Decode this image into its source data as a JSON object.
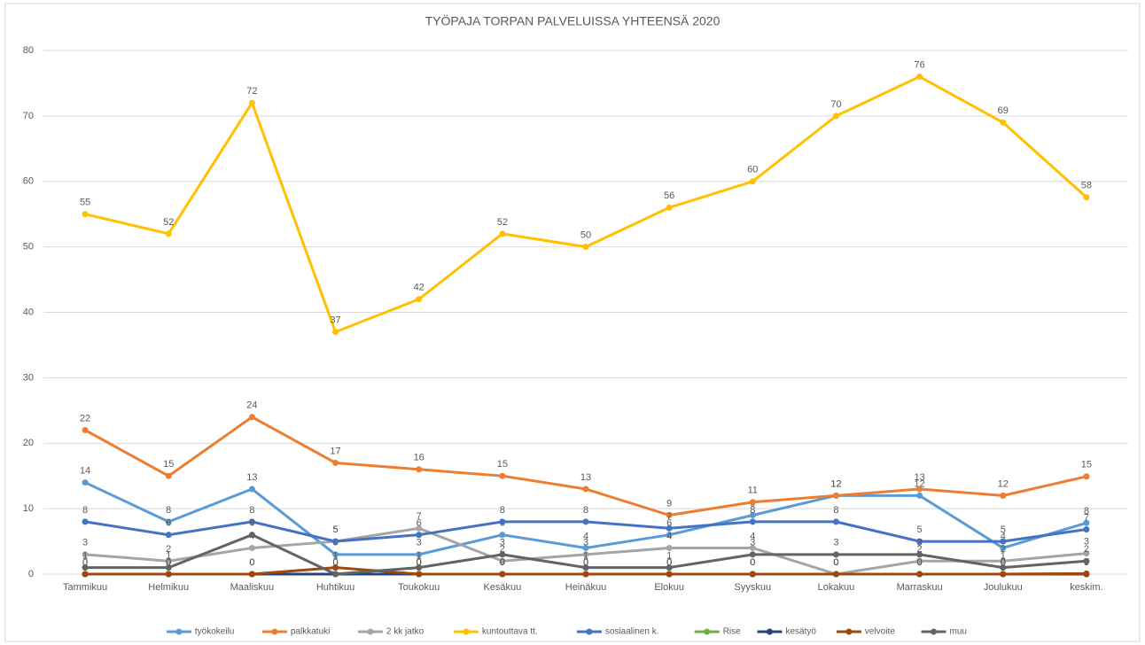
{
  "chart_data": {
    "type": "line",
    "title": "TYÖPAJA TORPAN PALVELUISSA YHTEENSÄ 2020",
    "categories": [
      "Tammikuu",
      "Helmikuu",
      "Maaliskuu",
      "Huhtikuu",
      "Toukokuu",
      "Kesäkuu",
      "Heinäkuu",
      "Elokuu",
      "Syyskuu",
      "Lokakuu",
      "Marraskuu",
      "Joulukuu",
      "keskim."
    ],
    "series": [
      {
        "name": "työkokeilu",
        "color": "#5b9bd5",
        "values": [
          14,
          8,
          13,
          3,
          3,
          6,
          4,
          6,
          9,
          12,
          12,
          4,
          7.83
        ],
        "value_labels": [
          "14",
          "8",
          "13",
          "3",
          "3",
          "6",
          "4",
          "6",
          "9",
          "12",
          "12",
          "4",
          "8"
        ]
      },
      {
        "name": "palkkatuki",
        "color": "#ed7d31",
        "values": [
          22,
          15,
          24,
          17,
          16,
          15,
          13,
          9,
          11,
          12,
          13,
          12,
          14.92
        ],
        "value_labels": [
          "22",
          "15",
          "24",
          "17",
          "16",
          "15",
          "13",
          "9",
          "11",
          "12",
          "13",
          "12",
          "15"
        ]
      },
      {
        "name": "2 kk jatko",
        "color": "#a5a5a5",
        "values": [
          3,
          2,
          4,
          5,
          7,
          2,
          3,
          4,
          4,
          0,
          2,
          2,
          3.17
        ],
        "value_labels": [
          "3",
          "2",
          "4",
          "5",
          "7",
          "2",
          "3",
          "4",
          "4",
          "0",
          "2",
          "2",
          "3"
        ]
      },
      {
        "name": "kuntouttava tt.",
        "color": "#ffc000",
        "values": [
          55,
          52,
          72,
          37,
          42,
          52,
          50,
          56,
          60,
          70,
          76,
          69,
          57.58
        ],
        "value_labels": [
          "55",
          "52",
          "72",
          "37",
          "42",
          "52",
          "50",
          "56",
          "60",
          "70",
          "76",
          "69",
          "58"
        ]
      },
      {
        "name": "sosiaalinen k.",
        "color": "#4472c4",
        "values": [
          8,
          6,
          8,
          5,
          6,
          8,
          8,
          7,
          8,
          8,
          5,
          5,
          6.83
        ],
        "value_labels": [
          "8",
          "6",
          "8",
          "5",
          "6",
          "8",
          "8",
          "7",
          "8",
          "8",
          "5",
          "5",
          "7"
        ]
      },
      {
        "name": "Rise",
        "color": "#70ad47",
        "values": [
          0,
          0,
          0,
          0,
          0,
          0,
          0,
          0,
          0,
          0,
          0,
          0,
          0
        ]
      },
      {
        "name": "kesätyö",
        "color": "#264478",
        "values": [
          0,
          0,
          0,
          0,
          0,
          0,
          0,
          0,
          0,
          0,
          0,
          0,
          0
        ]
      },
      {
        "name": "velvoite",
        "color": "#9e480e",
        "values": [
          0,
          0,
          0,
          1,
          0,
          0,
          0,
          0,
          0,
          0,
          0,
          0,
          0.08
        ],
        "value_labels": [
          "0",
          "0",
          "0",
          "1",
          "0",
          "0",
          "0",
          "0",
          "0",
          "0",
          "0",
          "0",
          "0"
        ]
      },
      {
        "name": "muu",
        "color": "#636363",
        "values": [
          1,
          1,
          6,
          0,
          1,
          3,
          1,
          1,
          3,
          3,
          3,
          1,
          2
        ]
      }
    ],
    "ylim": [
      0,
      80
    ],
    "yticks": [
      0,
      10,
      20,
      30,
      40,
      50,
      60,
      70,
      80
    ],
    "grid": true,
    "legend": "bottom"
  }
}
